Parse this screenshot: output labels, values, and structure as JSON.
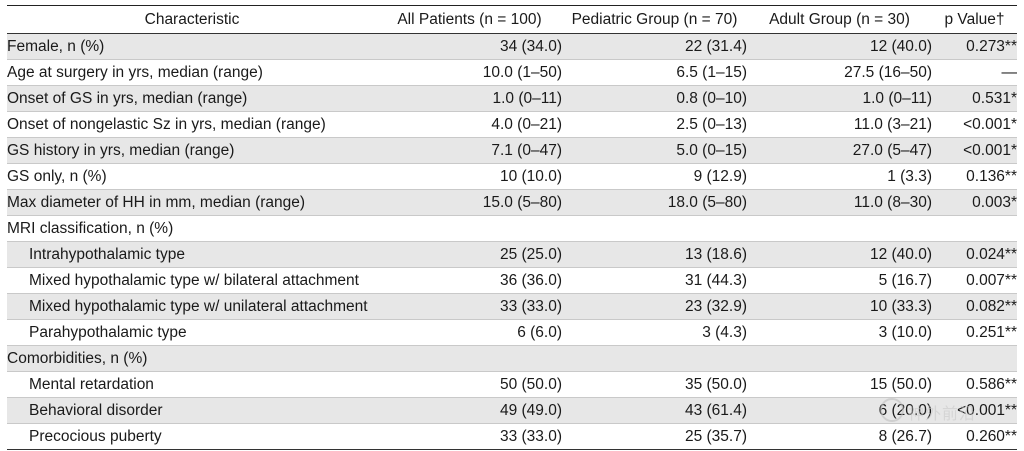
{
  "table": {
    "headers": {
      "characteristic": "Characteristic",
      "all": "All Patients (n = 100)",
      "pediatric": "Pediatric Group (n = 70)",
      "adult": "Adult Group (n = 30)",
      "p": "p Value†"
    },
    "rows": [
      {
        "label": "Female, n (%)",
        "all": "34 (34.0)",
        "ped": "22 (31.4)",
        "adult": "12 (40.0)",
        "p": "0.273**"
      },
      {
        "label": "Age at surgery in yrs, median (range)",
        "all": "10.0 (1–50)",
        "ped": "6.5 (1–15)",
        "adult": "27.5 (16–50)",
        "p": "—"
      },
      {
        "label": "Onset of GS in yrs, median (range)",
        "all": "1.0 (0–11)",
        "ped": "0.8 (0–10)",
        "adult": "1.0 (0–11)",
        "p": "0.531*"
      },
      {
        "label": "Onset of nongelastic Sz in yrs, median (range)",
        "all": "4.0 (0–21)",
        "ped": "2.5 (0–13)",
        "adult": "11.0 (3–21)",
        "p": "<0.001*"
      },
      {
        "label": "GS history in yrs, median (range)",
        "all": "7.1 (0–47)",
        "ped": "5.0 (0–15)",
        "adult": "27.0 (5–47)",
        "p": "<0.001*"
      },
      {
        "label": "GS only, n (%)",
        "all": "10 (10.0)",
        "ped": "9 (12.9)",
        "adult": "1 (3.3)",
        "p": "0.136**"
      },
      {
        "label": "Max diameter of HH in mm, median (range)",
        "all": "15.0 (5–80)",
        "ped": "18.0 (5–80)",
        "adult": "11.0 (8–30)",
        "p": "0.003*"
      },
      {
        "label": "MRI classification, n (%)",
        "all": "",
        "ped": "",
        "adult": "",
        "p": ""
      },
      {
        "label": "Intrahypothalamic type",
        "all": "25 (25.0)",
        "ped": "13 (18.6)",
        "adult": "12 (40.0)",
        "p": "0.024**"
      },
      {
        "label": "Mixed hypothalamic type w/ bilateral attachment",
        "all": "36 (36.0)",
        "ped": "31 (44.3)",
        "adult": "5 (16.7)",
        "p": "0.007**"
      },
      {
        "label": "Mixed hypothalamic type w/ unilateral attachment",
        "all": "33 (33.0)",
        "ped": "23 (32.9)",
        "adult": "10 (33.3)",
        "p": "0.082**"
      },
      {
        "label": "Parahypothalamic type",
        "all": "6 (6.0)",
        "ped": "3 (4.3)",
        "adult": "3 (10.0)",
        "p": "0.251**"
      },
      {
        "label": "Comorbidities, n (%)",
        "all": "",
        "ped": "",
        "adult": "",
        "p": ""
      },
      {
        "label": "Mental retardation",
        "all": "50 (50.0)",
        "ped": "35 (50.0)",
        "adult": "15 (50.0)",
        "p": "0.586**"
      },
      {
        "label": "Behavioral disorder",
        "all": "49 (49.0)",
        "ped": "43 (61.4)",
        "adult": "6 (20.0)",
        "p": "<0.001**"
      },
      {
        "label": "Precocious puberty",
        "all": "33 (33.0)",
        "ped": "25 (35.7)",
        "adult": "8 (26.7)",
        "p": "0.260**"
      }
    ]
  },
  "watermark": {
    "text": "神外前沿"
  }
}
